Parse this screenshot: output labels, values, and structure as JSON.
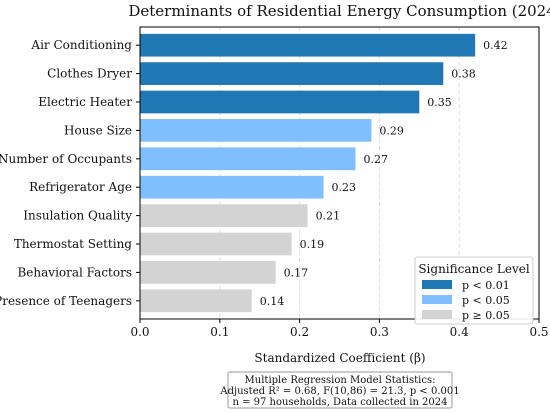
{
  "colors": {
    "high": "#1f77b4",
    "medium": "#7fbfff",
    "low": "#d3d3d3",
    "grid": "#dddddd"
  },
  "chart_data": {
    "type": "bar",
    "orientation": "horizontal",
    "title": "Determinants of Residential Energy Consumption (2024)",
    "xlabel": "Standardized Coefficient (β)",
    "ylabel": "",
    "xlim": [
      0,
      0.5
    ],
    "xticks": [
      "0.0",
      "0.1",
      "0.2",
      "0.3",
      "0.4",
      "0.5"
    ],
    "grid": "vertical dashed",
    "categories": [
      "Air Conditioning",
      "Clothes Dryer",
      "Electric Heater",
      "House Size",
      "Number of Occupants",
      "Refrigerator Age",
      "Insulation Quality",
      "Thermostat Setting",
      "Behavioral Factors",
      "Presence of Teenagers"
    ],
    "values": [
      0.42,
      0.38,
      0.35,
      0.29,
      0.27,
      0.23,
      0.21,
      0.19,
      0.17,
      0.14
    ],
    "value_labels": [
      "0.42",
      "0.38",
      "0.35",
      "0.29",
      "0.27",
      "0.23",
      "0.21",
      "0.19",
      "0.17",
      "0.14"
    ],
    "significance": [
      "high",
      "high",
      "high",
      "medium",
      "medium",
      "medium",
      "low",
      "low",
      "low",
      "low"
    ],
    "legend": {
      "title": "Significance Level",
      "position": "lower-right",
      "items": [
        {
          "label": "p < 0.01",
          "level": "high"
        },
        {
          "label": "p < 0.05",
          "level": "medium"
        },
        {
          "label": "p ≥ 0.05",
          "level": "low"
        }
      ]
    },
    "annotation_lines": [
      "Multiple Regression Model Statistics:",
      "Adjusted R² = 0.68, F(10,86) = 21.3, p < 0.001",
      "n = 97 households, Data collected in 2024"
    ]
  }
}
